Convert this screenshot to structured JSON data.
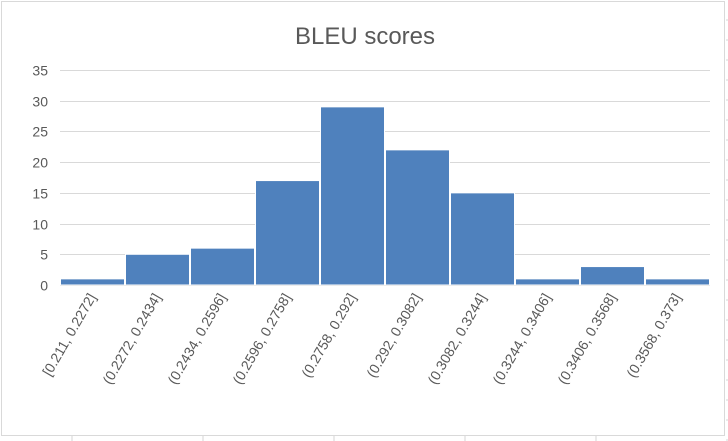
{
  "chart_data": {
    "type": "bar",
    "title": "BLEU scores",
    "xlabel": "",
    "ylabel": "",
    "categories": [
      "[0.211, 0.2272]",
      "(0.2272, 0.2434]",
      "(0.2434, 0.2596]",
      "(0.2596, 0.2758]",
      "(0.2758, 0.292]",
      "(0.292, 0.3082]",
      "(0.3082, 0.3244]",
      "(0.3244, 0.3406]",
      "(0.3406, 0.3568]",
      "(0.3568, 0.373]"
    ],
    "values": [
      1,
      5,
      6,
      17,
      29,
      22,
      15,
      1,
      3,
      1
    ],
    "ylim": [
      0,
      35
    ],
    "yticks": [
      0,
      5,
      10,
      15,
      20,
      25,
      30,
      35
    ],
    "grid": true,
    "legend": "none",
    "colors": {
      "bar": "#4f81bd",
      "gridline": "#d9d9d9",
      "text": "#595959"
    }
  }
}
